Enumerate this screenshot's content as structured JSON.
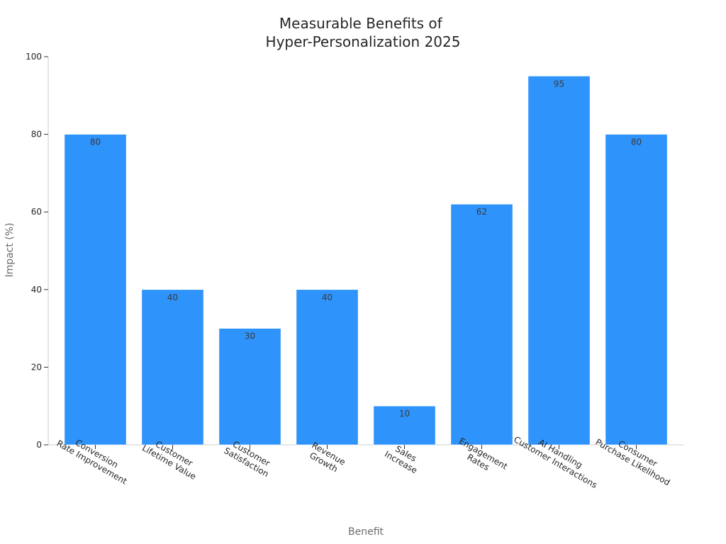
{
  "chart_data": {
    "type": "bar",
    "title_lines": [
      "Measurable Benefits of",
      "Hyper-Personalization 2025"
    ],
    "xlabel": "Benefit",
    "ylabel": "Impact (%)",
    "ylim": [
      0,
      100
    ],
    "yticks": [
      0,
      20,
      40,
      60,
      80,
      100
    ],
    "grid": false,
    "bar_color": "#2e93fa",
    "categories": [
      [
        "Conversion",
        "Rate Improvement"
      ],
      [
        "Customer",
        "Lifetime Value"
      ],
      [
        "Customer",
        "Satisfaction"
      ],
      [
        "Revenue",
        "Growth"
      ],
      [
        "Sales",
        "Increase"
      ],
      [
        "Engagement",
        "Rates"
      ],
      [
        "AI Handling",
        "Customer Interactions"
      ],
      [
        "Consumer",
        "Purchase Likelihood"
      ]
    ],
    "values": [
      80,
      40,
      30,
      40,
      10,
      62,
      95,
      80
    ]
  }
}
